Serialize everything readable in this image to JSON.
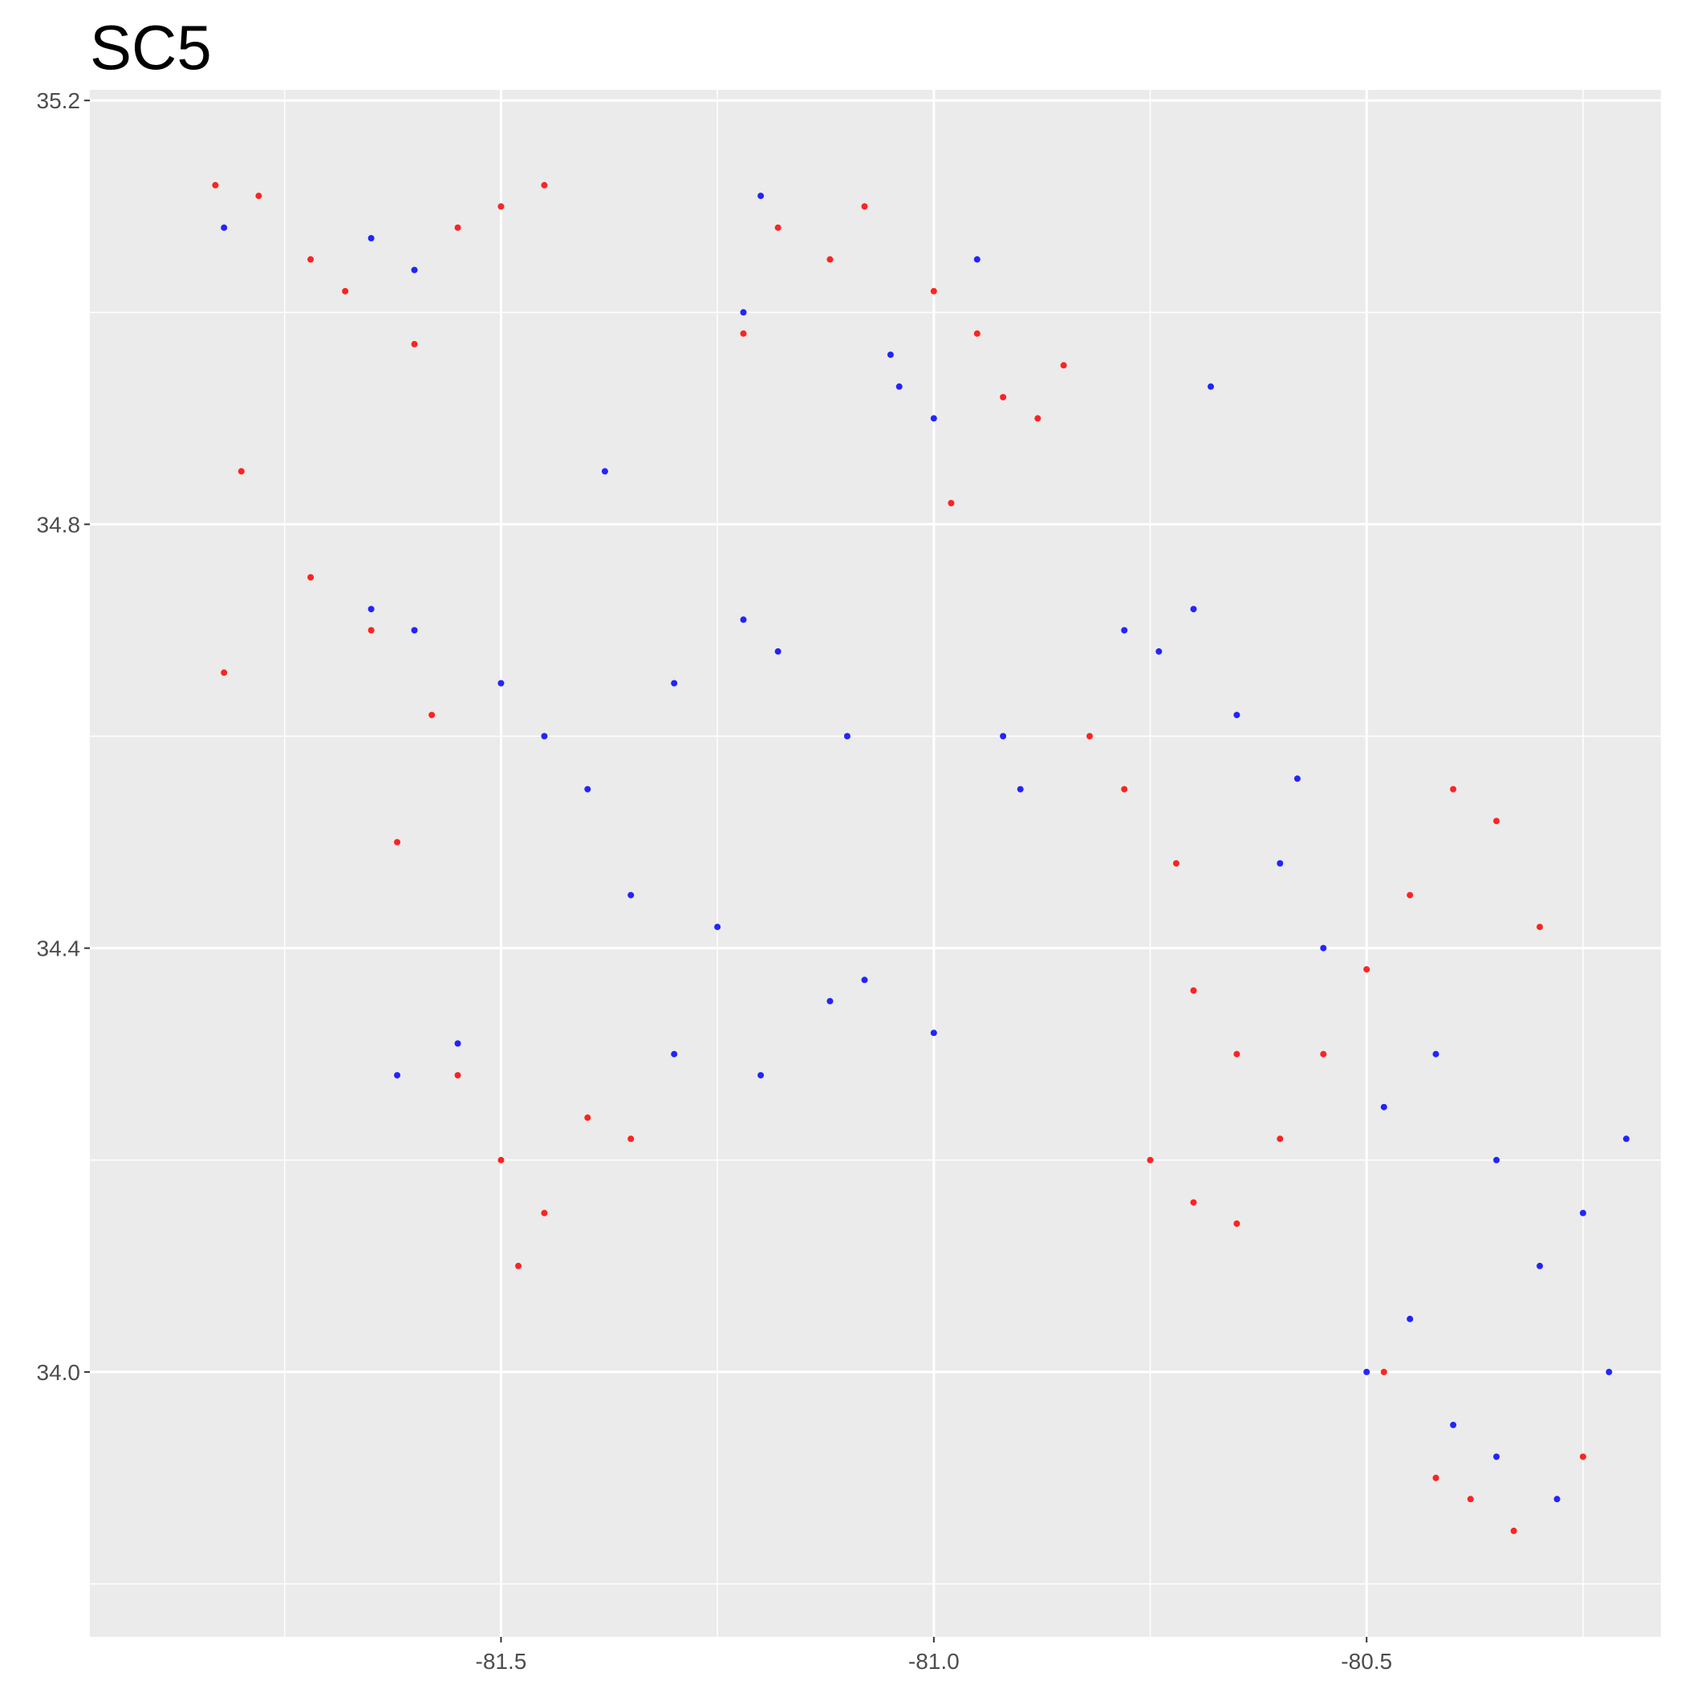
{
  "chart_data": {
    "type": "scatter",
    "title": "SC5",
    "xlabel": "",
    "ylabel": "",
    "xlim": [
      -81.975,
      -80.16
    ],
    "ylim": [
      33.75,
      35.21
    ],
    "x_ticks": [
      -81.5,
      -81.0,
      -80.5
    ],
    "x_tick_labels": [
      "-81.5",
      "-81.0",
      "-80.5"
    ],
    "y_ticks": [
      34.0,
      34.4,
      34.8,
      35.2
    ],
    "y_tick_labels": [
      "34.0",
      "34.4",
      "34.8",
      "35.2"
    ],
    "grid": true,
    "legend": "none",
    "series": [
      {
        "color": "#FF0000",
        "values": [
          [
            -81.83,
            35.12
          ],
          [
            -81.78,
            35.11
          ],
          [
            -81.72,
            35.05
          ],
          [
            -81.68,
            35.02
          ],
          [
            -81.6,
            34.97
          ],
          [
            -81.55,
            35.08
          ],
          [
            -81.5,
            35.1
          ],
          [
            -81.45,
            35.12
          ],
          [
            -81.8,
            34.85
          ],
          [
            -81.72,
            34.75
          ],
          [
            -81.65,
            34.7
          ],
          [
            -81.58,
            34.62
          ],
          [
            -81.82,
            34.66
          ],
          [
            -81.62,
            34.5
          ],
          [
            -81.55,
            34.28
          ],
          [
            -81.5,
            34.2
          ],
          [
            -81.45,
            34.15
          ],
          [
            -81.48,
            34.1
          ],
          [
            -81.4,
            34.24
          ],
          [
            -81.35,
            34.22
          ],
          [
            -81.18,
            35.08
          ],
          [
            -81.12,
            35.05
          ],
          [
            -81.08,
            35.1
          ],
          [
            -81.22,
            34.98
          ],
          [
            -81.0,
            35.02
          ],
          [
            -80.95,
            34.98
          ],
          [
            -80.92,
            34.92
          ],
          [
            -80.88,
            34.9
          ],
          [
            -80.85,
            34.95
          ],
          [
            -80.98,
            34.82
          ],
          [
            -80.82,
            34.6
          ],
          [
            -80.78,
            34.55
          ],
          [
            -80.72,
            34.48
          ],
          [
            -80.7,
            34.36
          ],
          [
            -80.65,
            34.3
          ],
          [
            -80.75,
            34.2
          ],
          [
            -80.7,
            34.16
          ],
          [
            -80.65,
            34.14
          ],
          [
            -80.6,
            34.22
          ],
          [
            -80.55,
            34.3
          ],
          [
            -80.5,
            34.38
          ],
          [
            -80.45,
            34.45
          ],
          [
            -80.4,
            34.55
          ],
          [
            -80.35,
            34.52
          ],
          [
            -80.3,
            34.42
          ],
          [
            -80.48,
            34.0
          ],
          [
            -80.42,
            33.9
          ],
          [
            -80.38,
            33.88
          ],
          [
            -80.33,
            33.85
          ],
          [
            -80.25,
            33.92
          ]
        ]
      },
      {
        "color": "#0000FF",
        "values": [
          [
            -81.65,
            35.07
          ],
          [
            -81.6,
            35.04
          ],
          [
            -81.82,
            35.08
          ],
          [
            -81.2,
            35.11
          ],
          [
            -81.22,
            35.0
          ],
          [
            -81.04,
            34.93
          ],
          [
            -81.05,
            34.96
          ],
          [
            -81.0,
            34.9
          ],
          [
            -80.95,
            35.05
          ],
          [
            -81.65,
            34.72
          ],
          [
            -81.6,
            34.7
          ],
          [
            -81.22,
            34.71
          ],
          [
            -81.18,
            34.68
          ],
          [
            -81.3,
            34.65
          ],
          [
            -81.1,
            34.6
          ],
          [
            -81.4,
            34.55
          ],
          [
            -81.35,
            34.45
          ],
          [
            -81.25,
            34.42
          ],
          [
            -81.08,
            34.37
          ],
          [
            -81.12,
            34.35
          ],
          [
            -81.0,
            34.32
          ],
          [
            -81.2,
            34.28
          ],
          [
            -81.3,
            34.3
          ],
          [
            -81.62,
            34.28
          ],
          [
            -81.55,
            34.31
          ],
          [
            -80.78,
            34.7
          ],
          [
            -80.74,
            34.68
          ],
          [
            -80.7,
            34.72
          ],
          [
            -80.65,
            34.62
          ],
          [
            -80.58,
            34.56
          ],
          [
            -80.6,
            34.48
          ],
          [
            -80.55,
            34.4
          ],
          [
            -80.48,
            34.25
          ],
          [
            -80.42,
            34.3
          ],
          [
            -80.35,
            34.2
          ],
          [
            -80.3,
            34.1
          ],
          [
            -80.25,
            34.15
          ],
          [
            -80.2,
            34.22
          ],
          [
            -80.45,
            34.05
          ],
          [
            -80.5,
            34.0
          ],
          [
            -80.4,
            33.95
          ],
          [
            -80.35,
            33.92
          ],
          [
            -80.28,
            33.88
          ],
          [
            -80.22,
            34.0
          ],
          [
            -80.9,
            34.55
          ],
          [
            -80.92,
            34.6
          ],
          [
            -80.68,
            34.93
          ],
          [
            -81.38,
            34.85
          ],
          [
            -81.5,
            34.65
          ],
          [
            -81.45,
            34.6
          ]
        ]
      }
    ]
  }
}
